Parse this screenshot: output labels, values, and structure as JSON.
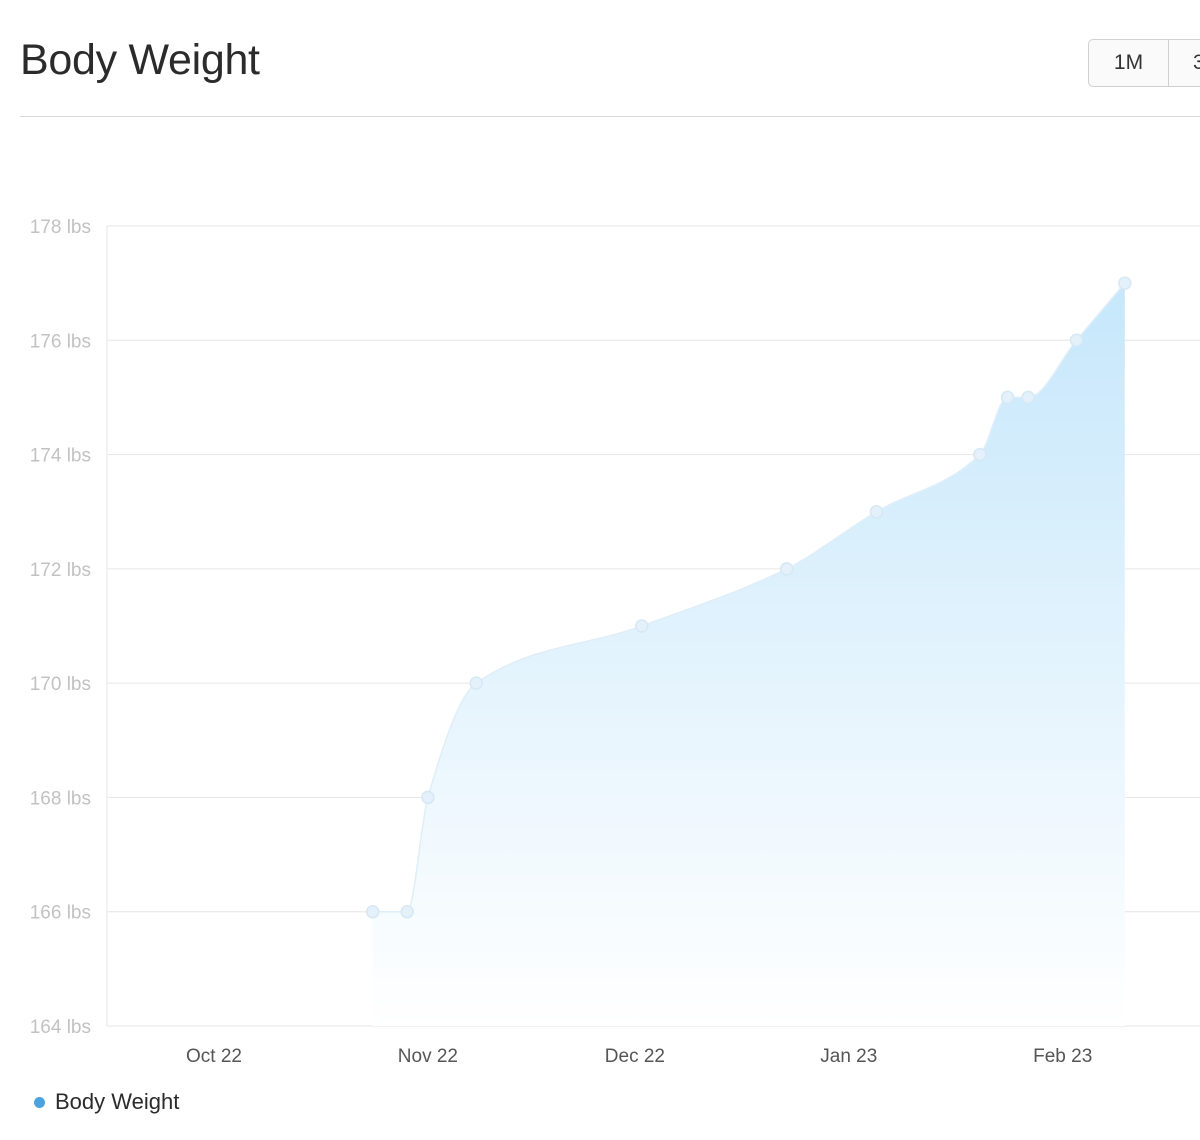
{
  "header": {
    "title": "Body Weight",
    "range_buttons": [
      "1M",
      "3"
    ]
  },
  "colors": {
    "series": "#4aa3df",
    "area_top": "#c6e7fb",
    "area_bottom": "#ffffff",
    "grid": "#e6e6e6",
    "tick_y": "#c2c2c2",
    "tick_x": "#555555"
  },
  "chart_data": {
    "type": "area",
    "title": "Body Weight",
    "xlabel": "",
    "ylabel": "",
    "y_unit": "lbs",
    "ylim": [
      164,
      178
    ],
    "y_ticks": [
      164,
      166,
      168,
      170,
      172,
      174,
      176,
      178
    ],
    "y_tick_labels": [
      "164 lbs",
      "166 lbs",
      "168 lbs",
      "170 lbs",
      "172 lbs",
      "174 lbs",
      "176 lbs",
      "178 lbs"
    ],
    "x_ticks": [
      "2022-10-22",
      "2022-11-22",
      "2022-12-22",
      "2023-01-22",
      "2023-02-22"
    ],
    "x_tick_labels": [
      "Oct 22",
      "Nov 22",
      "Dec 22",
      "Jan 23",
      "Feb 23"
    ],
    "grid": true,
    "legend_position": "bottom-left",
    "series": [
      {
        "name": "Body Weight",
        "points": [
          {
            "x": "2022-11-14",
            "y": 166
          },
          {
            "x": "2022-11-19",
            "y": 166
          },
          {
            "x": "2022-11-22",
            "y": 168
          },
          {
            "x": "2022-11-29",
            "y": 170
          },
          {
            "x": "2022-12-23",
            "y": 171
          },
          {
            "x": "2023-01-13",
            "y": 172
          },
          {
            "x": "2023-01-26",
            "y": 173
          },
          {
            "x": "2023-02-10",
            "y": 174
          },
          {
            "x": "2023-02-14",
            "y": 175
          },
          {
            "x": "2023-02-17",
            "y": 175
          },
          {
            "x": "2023-02-24",
            "y": 176
          },
          {
            "x": "2023-03-03",
            "y": 177
          }
        ]
      }
    ]
  }
}
